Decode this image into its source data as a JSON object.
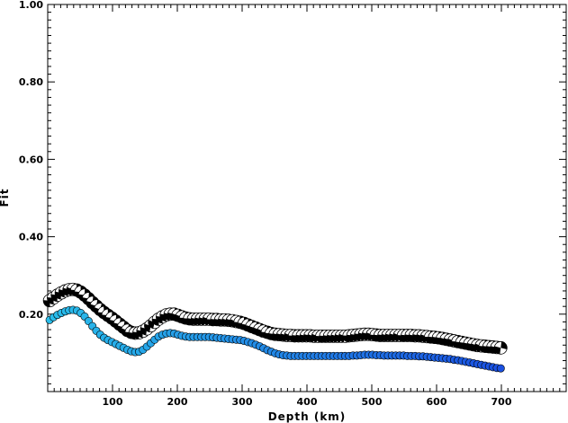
{
  "chart_data": {
    "type": "scatter",
    "title": "",
    "xlabel": "Depth (km)",
    "ylabel": "Fit",
    "xlim": [
      0,
      800
    ],
    "ylim": [
      0,
      1.0
    ],
    "x_ticks": [
      100,
      200,
      300,
      400,
      500,
      600,
      700
    ],
    "x_tick_labels": [
      "100",
      "200",
      "300",
      "400",
      "500",
      "600",
      "700"
    ],
    "y_ticks": [
      0.2,
      0.4,
      0.6,
      0.8,
      1.0
    ],
    "y_tick_labels": [
      "0.20",
      "0.40",
      "0.60",
      "0.80",
      "1.00"
    ],
    "grid": false,
    "legend": "none",
    "colors": {
      "mechanism_dark": "#000000",
      "mechanism_light": "#ffffff",
      "series_cyan": "#29b6e8",
      "series_blue": "#1a55e0"
    },
    "series": [
      {
        "marker": "focal-mechanism",
        "x": [
          3,
          9,
          15,
          21,
          27,
          33,
          39,
          45,
          51,
          57,
          63,
          69,
          75,
          81,
          87,
          93,
          99,
          105,
          111,
          117,
          123,
          129,
          135,
          141,
          147,
          153,
          159,
          165,
          171,
          177,
          183,
          189,
          195,
          201,
          207,
          213,
          219,
          225,
          231,
          237,
          243,
          249,
          255,
          261,
          267,
          273,
          279,
          285,
          291,
          297,
          303,
          309,
          315,
          321,
          327,
          333,
          339,
          345,
          351,
          357,
          363,
          369,
          375,
          381,
          387,
          393,
          399,
          405,
          411,
          417,
          423,
          429,
          435,
          441,
          447,
          453,
          459,
          465,
          471,
          477,
          483,
          489,
          495,
          501,
          507,
          513,
          519,
          525,
          531,
          537,
          543,
          549,
          555,
          561,
          567,
          573,
          579,
          585,
          591,
          597,
          603,
          609,
          615,
          621,
          627,
          633,
          639,
          645,
          651,
          657,
          663,
          669,
          675,
          681,
          687,
          693,
          699
        ],
        "y": [
          0.235,
          0.242,
          0.249,
          0.255,
          0.26,
          0.263,
          0.264,
          0.262,
          0.257,
          0.249,
          0.24,
          0.23,
          0.221,
          0.212,
          0.204,
          0.197,
          0.19,
          0.182,
          0.174,
          0.166,
          0.158,
          0.153,
          0.151,
          0.152,
          0.156,
          0.162,
          0.17,
          0.179,
          0.187,
          0.193,
          0.198,
          0.2,
          0.2,
          0.197,
          0.193,
          0.19,
          0.188,
          0.187,
          0.187,
          0.187,
          0.187,
          0.187,
          0.186,
          0.186,
          0.185,
          0.185,
          0.184,
          0.183,
          0.181,
          0.179,
          0.176,
          0.172,
          0.168,
          0.164,
          0.16,
          0.156,
          0.153,
          0.15,
          0.148,
          0.147,
          0.146,
          0.145,
          0.145,
          0.144,
          0.144,
          0.144,
          0.144,
          0.144,
          0.143,
          0.143,
          0.143,
          0.143,
          0.143,
          0.143,
          0.143,
          0.143,
          0.143,
          0.144,
          0.145,
          0.146,
          0.147,
          0.148,
          0.148,
          0.147,
          0.146,
          0.145,
          0.145,
          0.145,
          0.145,
          0.145,
          0.145,
          0.145,
          0.145,
          0.145,
          0.144,
          0.144,
          0.143,
          0.142,
          0.141,
          0.14,
          0.139,
          0.137,
          0.135,
          0.133,
          0.131,
          0.129,
          0.127,
          0.125,
          0.123,
          0.121,
          0.119,
          0.118,
          0.117,
          0.116,
          0.115,
          0.114,
          0.113
        ]
      },
      {
        "marker": "dot",
        "color": "cyan-to-blue",
        "x": [
          3,
          9,
          15,
          21,
          27,
          33,
          39,
          45,
          51,
          57,
          63,
          69,
          75,
          81,
          87,
          93,
          99,
          105,
          111,
          117,
          123,
          129,
          135,
          141,
          147,
          153,
          159,
          165,
          171,
          177,
          183,
          189,
          195,
          201,
          207,
          213,
          219,
          225,
          231,
          237,
          243,
          249,
          255,
          261,
          267,
          273,
          279,
          285,
          291,
          297,
          303,
          309,
          315,
          321,
          327,
          333,
          339,
          345,
          351,
          357,
          363,
          369,
          375,
          381,
          387,
          393,
          399,
          405,
          411,
          417,
          423,
          429,
          435,
          441,
          447,
          453,
          459,
          465,
          471,
          477,
          483,
          489,
          495,
          501,
          507,
          513,
          519,
          525,
          531,
          537,
          543,
          549,
          555,
          561,
          567,
          573,
          579,
          585,
          591,
          597,
          603,
          609,
          615,
          621,
          627,
          633,
          639,
          645,
          651,
          657,
          663,
          669,
          675,
          681,
          687,
          693,
          699
        ],
        "y": [
          0.185,
          0.192,
          0.198,
          0.203,
          0.207,
          0.21,
          0.211,
          0.209,
          0.203,
          0.194,
          0.182,
          0.169,
          0.157,
          0.147,
          0.139,
          0.133,
          0.128,
          0.123,
          0.118,
          0.113,
          0.108,
          0.104,
          0.102,
          0.103,
          0.108,
          0.116,
          0.125,
          0.134,
          0.142,
          0.147,
          0.15,
          0.151,
          0.15,
          0.147,
          0.144,
          0.142,
          0.141,
          0.141,
          0.141,
          0.141,
          0.141,
          0.141,
          0.14,
          0.139,
          0.138,
          0.137,
          0.136,
          0.135,
          0.134,
          0.133,
          0.131,
          0.128,
          0.125,
          0.121,
          0.117,
          0.112,
          0.107,
          0.103,
          0.099,
          0.096,
          0.094,
          0.093,
          0.092,
          0.092,
          0.092,
          0.092,
          0.092,
          0.092,
          0.092,
          0.092,
          0.092,
          0.092,
          0.092,
          0.092,
          0.092,
          0.092,
          0.092,
          0.092,
          0.093,
          0.093,
          0.094,
          0.095,
          0.095,
          0.095,
          0.094,
          0.094,
          0.093,
          0.093,
          0.093,
          0.093,
          0.093,
          0.093,
          0.092,
          0.092,
          0.092,
          0.091,
          0.091,
          0.09,
          0.089,
          0.088,
          0.087,
          0.086,
          0.085,
          0.084,
          0.082,
          0.081,
          0.079,
          0.077,
          0.075,
          0.073,
          0.071,
          0.069,
          0.067,
          0.065,
          0.063,
          0.061,
          0.06
        ]
      }
    ]
  }
}
